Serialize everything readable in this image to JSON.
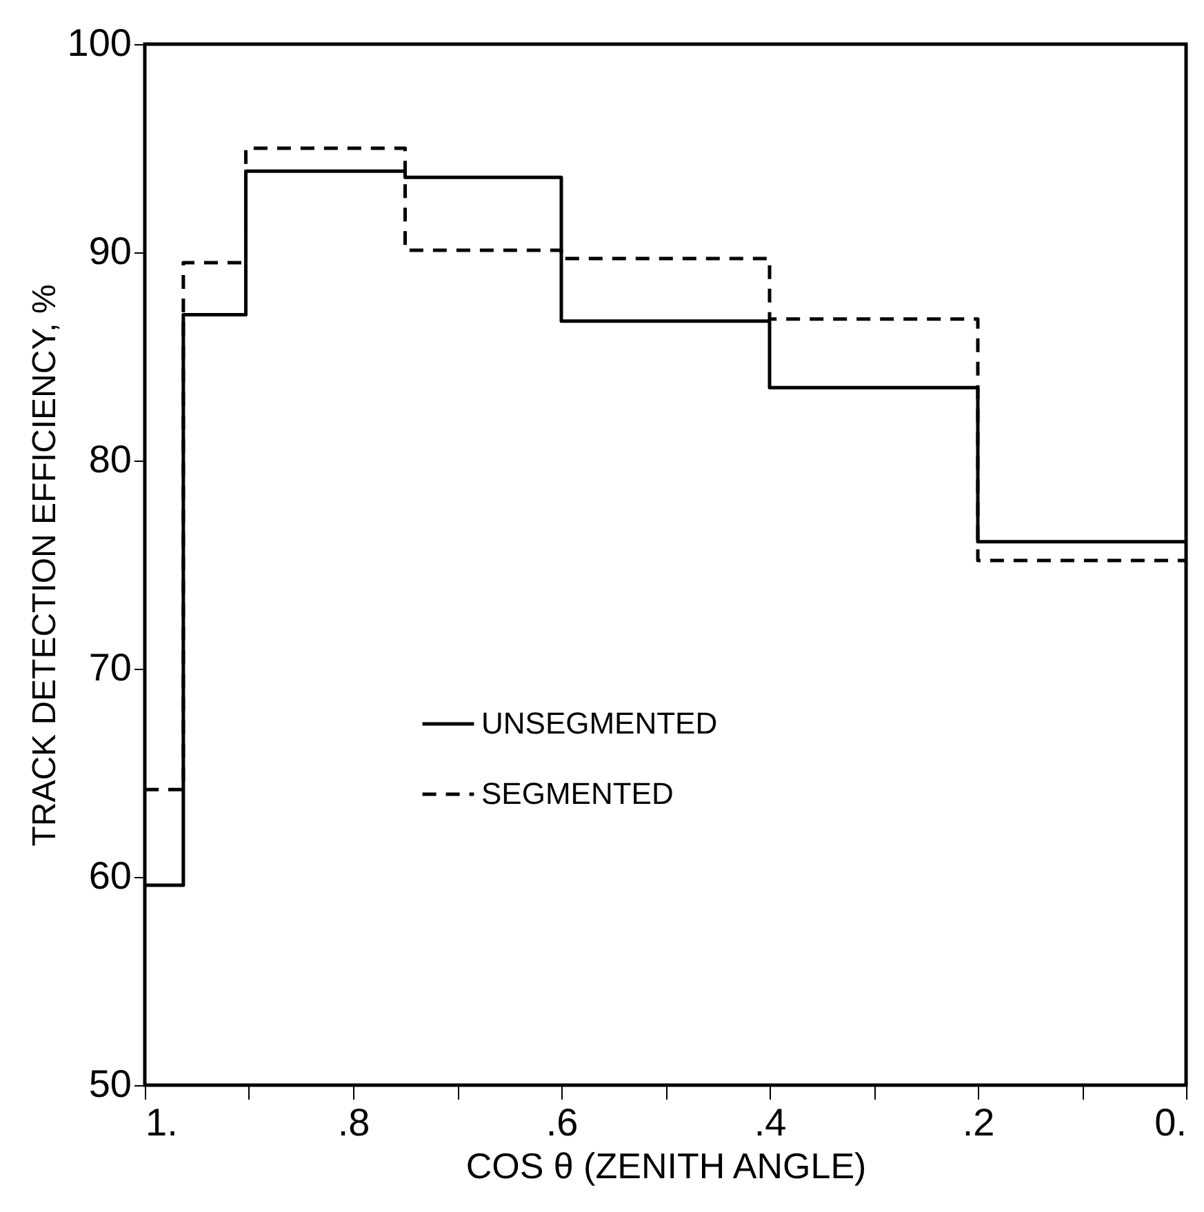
{
  "chart_data": {
    "type": "step",
    "xlabel": "COS θ (ZENITH ANGLE)",
    "ylabel": "TRACK DETECTION EFFICIENCY, %",
    "x": [
      1,
      0.963,
      0.903,
      0.75,
      0.6,
      0.4,
      0.2,
      0
    ],
    "xlim": [
      1,
      0
    ],
    "xticks": [
      {
        "value": 1,
        "label": "1."
      },
      {
        "value": 0.9,
        "label": null
      },
      {
        "value": 0.8,
        "label": ".8"
      },
      {
        "value": 0.7,
        "label": null
      },
      {
        "value": 0.6,
        "label": ".6"
      },
      {
        "value": 0.5,
        "label": null
      },
      {
        "value": 0.4,
        "label": ".4"
      },
      {
        "value": 0.3,
        "label": null
      },
      {
        "value": 0.2,
        "label": ".2"
      },
      {
        "value": 0.1,
        "label": null
      },
      {
        "value": 0,
        "label": "0."
      }
    ],
    "ylim": [
      50,
      100
    ],
    "yticks": [
      50,
      60,
      70,
      80,
      90,
      100
    ],
    "grid": false,
    "legend": "bottom left",
    "series": [
      {
        "name": "UNSEGMENTED",
        "color": "#000000",
        "line_style": "solid",
        "values": [
          59.6,
          87,
          93.9,
          93.6,
          86.7,
          83.5,
          76.1,
          76.1
        ]
      },
      {
        "name": "SEGMENTED",
        "color": "#000000",
        "line_style": "dashed",
        "values": [
          64.2,
          89.5,
          95,
          90.1,
          89.7,
          86.8,
          75.2,
          75.2
        ]
      }
    ]
  }
}
